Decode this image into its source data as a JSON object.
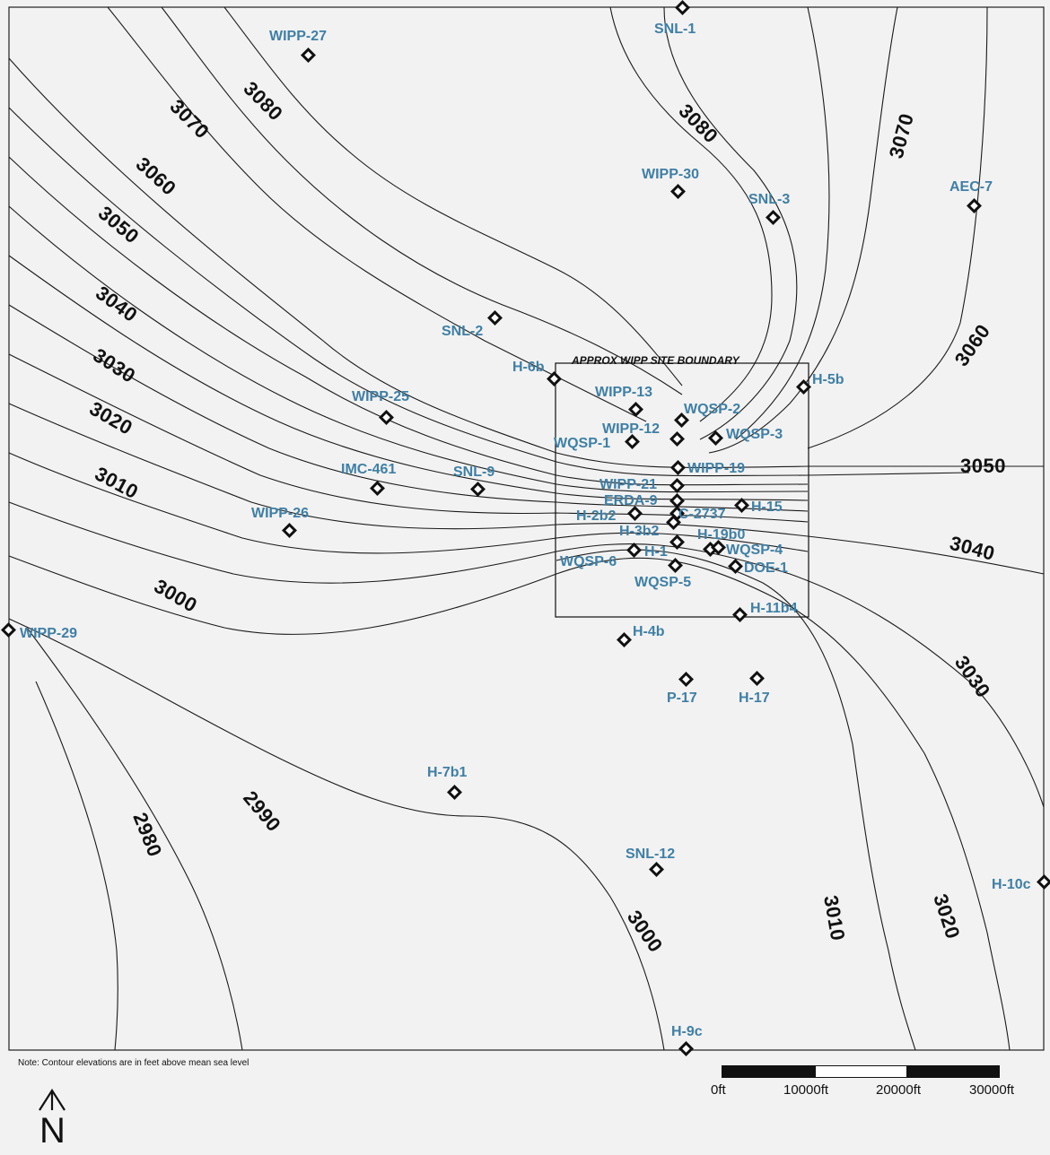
{
  "map": {
    "site_boundary_label": "APPROX WIPP SITE BOUNDARY",
    "note": "Note: Contour elevations are in feet above mean sea level",
    "scale_ticks": [
      "0ft",
      "10000ft",
      "20000ft",
      "30000ft"
    ],
    "north_arrow_label": "N",
    "colors": {
      "well_label": "#3f7fa5",
      "contour": "#1a1a1a",
      "background": "#f2f2f2"
    }
  },
  "contour_labels": {
    "c3080a": "3080",
    "c3070a": "3070",
    "c3060a": "3060",
    "c3050a": "3050",
    "c3040a": "3040",
    "c3030a": "3030",
    "c3020a": "3020",
    "c3010a": "3010",
    "c3000a": "3000",
    "c2990": "2990",
    "c2980": "2980",
    "c3080b": "3080",
    "c3070b": "3070",
    "c3060b": "3060",
    "c3050b": "3050",
    "c3040b": "3040",
    "c3030b": "3030",
    "c3020b": "3020",
    "c3010b": "3010",
    "c3000b": "3000"
  },
  "wells": {
    "snl1": "SNL-1",
    "wipp27": "WIPP-27",
    "wipp30": "WIPP-30",
    "snl3": "SNL-3",
    "aec7": "AEC-7",
    "snl2": "SNL-2",
    "h6b": "H-6b",
    "h5b": "H-5b",
    "wipp13": "WIPP-13",
    "wqsp2": "WQSP-2",
    "wipp25": "WIPP-25",
    "wipp12": "WIPP-12",
    "wqsp1": "WQSP-1",
    "wqsp3": "WQSP-3",
    "wipp19": "WIPP-19",
    "imc461": "IMC-461",
    "snl9": "SNL-9",
    "wipp21": "WIPP-21",
    "erda9": "ERDA-9",
    "h15": "H-15",
    "wipp26": "WIPP-26",
    "h2b2": "H-2b2",
    "c2737": "C-2737",
    "h3b2": "H-3b2",
    "h19b": "H-19b0",
    "h1": "H-1",
    "wqsp4": "WQSP-4",
    "wqsp6": "WQSP-6",
    "doe1": "DOE-1",
    "wqsp5": "WQSP-5",
    "h11b4": "H-11b4",
    "wipp29": "WIPP-29",
    "h4b": "H-4b",
    "p17": "P-17",
    "h17": "H-17",
    "h7b1": "H-7b1",
    "snl12": "SNL-12",
    "h10c": "H-10c",
    "h9c": "H-9c"
  }
}
